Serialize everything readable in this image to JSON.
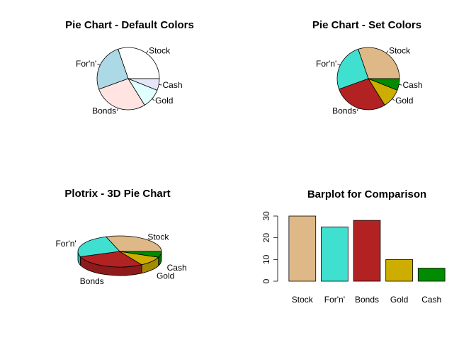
{
  "chart_data": [
    {
      "type": "pie",
      "title": "Pie Chart - Default Colors",
      "categories": [
        "Stock",
        "For'n'",
        "Bonds",
        "Gold",
        "Cash"
      ],
      "values": [
        30,
        25,
        28,
        10,
        6
      ],
      "colors": [
        "#ffffff",
        "#add8e6",
        "#ffe4e1",
        "#e0ffff",
        "#e6e6fa"
      ]
    },
    {
      "type": "pie",
      "title": "Pie Chart - Set Colors",
      "categories": [
        "Stock",
        "For'n'",
        "Bonds",
        "Gold",
        "Cash"
      ],
      "values": [
        30,
        25,
        28,
        10,
        6
      ],
      "colors": [
        "#deb887",
        "#40e0d0",
        "#b22222",
        "#cdad00",
        "#008b00"
      ]
    },
    {
      "type": "pie",
      "subtype": "3d",
      "title": "Plotrix - 3D Pie Chart",
      "categories": [
        "Stock",
        "For'n'",
        "Bonds",
        "Gold",
        "Cash"
      ],
      "values": [
        30,
        25,
        28,
        10,
        6
      ],
      "colors": [
        "#deb887",
        "#40e0d0",
        "#b22222",
        "#cdad00",
        "#008b00"
      ]
    },
    {
      "type": "bar",
      "title": "Barplot for Comparison",
      "categories": [
        "Stock",
        "For'n'",
        "Bonds",
        "Gold",
        "Cash"
      ],
      "values": [
        30,
        25,
        28,
        10,
        6
      ],
      "colors": [
        "#deb887",
        "#40e0d0",
        "#b22222",
        "#cdad00",
        "#008b00"
      ],
      "ylim": [
        0,
        30
      ],
      "yticks": [
        "0",
        "10",
        "20",
        "30"
      ]
    }
  ]
}
